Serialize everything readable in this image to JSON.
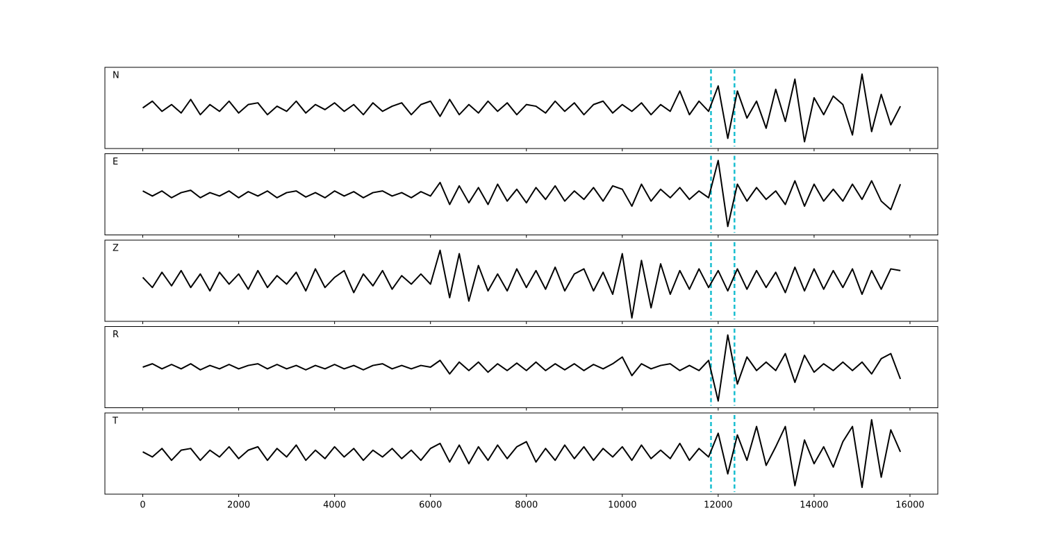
{
  "chart_data": {
    "type": "line",
    "x": [
      0,
      200,
      400,
      600,
      800,
      1000,
      1200,
      1400,
      1600,
      1800,
      2000,
      2200,
      2400,
      2600,
      2800,
      3000,
      3200,
      3400,
      3600,
      3800,
      4000,
      4200,
      4400,
      4600,
      4800,
      5000,
      5200,
      5400,
      5600,
      5800,
      6000,
      6200,
      6400,
      6600,
      6800,
      7000,
      7200,
      7400,
      7600,
      7800,
      8000,
      8200,
      8400,
      8600,
      8800,
      9000,
      9200,
      9400,
      9600,
      9800,
      10000,
      10200,
      10400,
      10600,
      10800,
      11000,
      11200,
      11400,
      11600,
      11800,
      12000,
      12200,
      12400,
      12600,
      12800,
      13000,
      13200,
      13400,
      13600,
      13800,
      14000,
      14200,
      14400,
      14600,
      14800,
      15000,
      15200,
      15400,
      15600,
      15800
    ],
    "series": [
      {
        "name": "N",
        "color": "#000000",
        "values": [
          0.0,
          0.2,
          -0.1,
          0.1,
          -0.15,
          0.25,
          -0.2,
          0.1,
          -0.1,
          0.2,
          -0.15,
          0.1,
          0.15,
          -0.2,
          0.05,
          -0.1,
          0.2,
          -0.15,
          0.1,
          -0.05,
          0.15,
          -0.1,
          0.1,
          -0.2,
          0.15,
          -0.1,
          0.05,
          0.15,
          -0.2,
          0.1,
          0.2,
          -0.25,
          0.25,
          -0.2,
          0.1,
          -0.15,
          0.2,
          -0.1,
          0.15,
          -0.2,
          0.1,
          0.05,
          -0.15,
          0.2,
          -0.1,
          0.15,
          -0.2,
          0.1,
          0.2,
          -0.15,
          0.1,
          -0.1,
          0.15,
          -0.2,
          0.1,
          -0.1,
          0.5,
          -0.2,
          0.2,
          -0.1,
          0.65,
          -0.9,
          0.5,
          -0.3,
          0.2,
          -0.6,
          0.55,
          -0.4,
          0.85,
          -1.0,
          0.3,
          -0.2,
          0.35,
          0.1,
          -0.8,
          1.0,
          -0.7,
          0.4,
          -0.5,
          0.05
        ]
      },
      {
        "name": "E",
        "color": "#000000",
        "values": [
          0.1,
          -0.05,
          0.1,
          -0.1,
          0.05,
          0.12,
          -0.1,
          0.05,
          -0.05,
          0.1,
          -0.1,
          0.08,
          -0.05,
          0.1,
          -0.1,
          0.05,
          0.1,
          -0.08,
          0.05,
          -0.1,
          0.1,
          -0.05,
          0.08,
          -0.1,
          0.05,
          0.1,
          -0.05,
          0.05,
          -0.1,
          0.08,
          -0.05,
          0.35,
          -0.3,
          0.25,
          -0.25,
          0.2,
          -0.3,
          0.3,
          -0.2,
          0.15,
          -0.25,
          0.2,
          -0.15,
          0.25,
          -0.2,
          0.1,
          -0.15,
          0.2,
          -0.2,
          0.25,
          0.15,
          -0.35,
          0.3,
          -0.2,
          0.15,
          -0.1,
          0.2,
          -0.15,
          0.1,
          -0.1,
          1.0,
          -0.95,
          0.3,
          -0.2,
          0.2,
          -0.15,
          0.1,
          -0.3,
          0.4,
          -0.35,
          0.3,
          -0.2,
          0.15,
          -0.2,
          0.3,
          -0.15,
          0.4,
          -0.2,
          -0.45,
          0.3
        ]
      },
      {
        "name": "Z",
        "color": "#000000",
        "values": [
          0.1,
          -0.2,
          0.25,
          -0.15,
          0.3,
          -0.2,
          0.2,
          -0.3,
          0.25,
          -0.1,
          0.2,
          -0.25,
          0.3,
          -0.2,
          0.15,
          -0.1,
          0.25,
          -0.3,
          0.35,
          -0.2,
          0.1,
          0.3,
          -0.35,
          0.2,
          -0.15,
          0.3,
          -0.25,
          0.15,
          -0.1,
          0.2,
          -0.1,
          0.9,
          -0.5,
          0.8,
          -0.6,
          0.45,
          -0.3,
          0.2,
          -0.3,
          0.35,
          -0.2,
          0.3,
          -0.25,
          0.4,
          -0.3,
          0.2,
          0.35,
          -0.3,
          0.25,
          -0.4,
          0.8,
          -1.1,
          0.6,
          -0.8,
          0.5,
          -0.4,
          0.3,
          -0.25,
          0.35,
          -0.2,
          0.3,
          -0.3,
          0.35,
          -0.25,
          0.3,
          -0.2,
          0.25,
          -0.35,
          0.4,
          -0.3,
          0.35,
          -0.25,
          0.3,
          -0.2,
          0.35,
          -0.4,
          0.3,
          -0.25,
          0.35,
          0.3
        ]
      },
      {
        "name": "R",
        "color": "#000000",
        "values": [
          0.0,
          0.1,
          -0.05,
          0.08,
          -0.05,
          0.1,
          -0.08,
          0.05,
          -0.05,
          0.08,
          -0.05,
          0.05,
          0.1,
          -0.05,
          0.08,
          -0.05,
          0.05,
          -0.08,
          0.05,
          -0.05,
          0.08,
          -0.05,
          0.05,
          -0.08,
          0.05,
          0.1,
          -0.05,
          0.05,
          -0.05,
          0.05,
          0.0,
          0.2,
          -0.2,
          0.15,
          -0.1,
          0.15,
          -0.15,
          0.1,
          -0.1,
          0.12,
          -0.1,
          0.15,
          -0.1,
          0.1,
          -0.08,
          0.1,
          -0.1,
          0.08,
          -0.05,
          0.1,
          0.3,
          -0.25,
          0.1,
          -0.05,
          0.05,
          0.1,
          -0.1,
          0.05,
          -0.1,
          0.2,
          -1.0,
          0.95,
          -0.5,
          0.3,
          -0.1,
          0.15,
          -0.1,
          0.4,
          -0.45,
          0.35,
          -0.15,
          0.1,
          -0.1,
          0.15,
          -0.1,
          0.15,
          -0.2,
          0.25,
          0.4,
          -0.35
        ]
      },
      {
        "name": "T",
        "color": "#000000",
        "values": [
          0.05,
          -0.1,
          0.15,
          -0.2,
          0.1,
          0.15,
          -0.2,
          0.1,
          -0.1,
          0.2,
          -0.15,
          0.1,
          0.2,
          -0.2,
          0.15,
          -0.1,
          0.25,
          -0.2,
          0.1,
          -0.15,
          0.2,
          -0.1,
          0.15,
          -0.2,
          0.1,
          -0.1,
          0.15,
          -0.15,
          0.1,
          -0.2,
          0.15,
          0.3,
          -0.25,
          0.25,
          -0.3,
          0.2,
          -0.2,
          0.25,
          -0.15,
          0.2,
          0.35,
          -0.25,
          0.15,
          -0.2,
          0.25,
          -0.15,
          0.2,
          -0.2,
          0.15,
          -0.1,
          0.2,
          -0.2,
          0.25,
          -0.15,
          0.1,
          -0.15,
          0.3,
          -0.2,
          0.15,
          -0.1,
          0.6,
          -0.6,
          0.55,
          -0.2,
          0.8,
          -0.35,
          0.2,
          0.8,
          -0.95,
          0.4,
          -0.3,
          0.2,
          -0.4,
          0.35,
          0.8,
          -1.0,
          1.0,
          -0.7,
          0.7,
          0.05
        ]
      }
    ],
    "xlim": [
      -790,
      16580
    ],
    "xticks": [
      0,
      2000,
      4000,
      6000,
      8000,
      10000,
      12000,
      14000,
      16000
    ],
    "ylim": [
      -1.2,
      1.2
    ],
    "vlines": [
      11850,
      12340
    ],
    "vline_color": "#17becf"
  }
}
